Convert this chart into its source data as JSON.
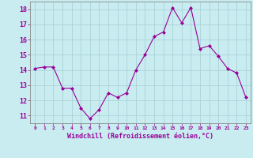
{
  "x": [
    0,
    1,
    2,
    3,
    4,
    5,
    6,
    7,
    8,
    9,
    10,
    11,
    12,
    13,
    14,
    15,
    16,
    17,
    18,
    19,
    20,
    21,
    22,
    23
  ],
  "y": [
    14.1,
    14.2,
    14.2,
    12.8,
    12.8,
    11.5,
    10.8,
    11.4,
    12.5,
    12.2,
    12.5,
    14.0,
    15.0,
    16.2,
    16.5,
    18.1,
    17.1,
    18.1,
    15.4,
    15.6,
    14.9,
    14.1,
    13.8,
    12.2
  ],
  "xlim": [
    -0.5,
    23.5
  ],
  "ylim": [
    10.5,
    18.5
  ],
  "yticks": [
    11,
    12,
    13,
    14,
    15,
    16,
    17,
    18
  ],
  "xticks": [
    0,
    1,
    2,
    3,
    4,
    5,
    6,
    7,
    8,
    9,
    10,
    11,
    12,
    13,
    14,
    15,
    16,
    17,
    18,
    19,
    20,
    21,
    22,
    23
  ],
  "xlabel": "Windchill (Refroidissement éolien,°C)",
  "line_color": "#990099",
  "marker": "D",
  "marker_size": 2.0,
  "bg_color": "#c8ecf0",
  "grid_color": "#aad4d8",
  "tick_color": "#990099",
  "label_color": "#990099"
}
